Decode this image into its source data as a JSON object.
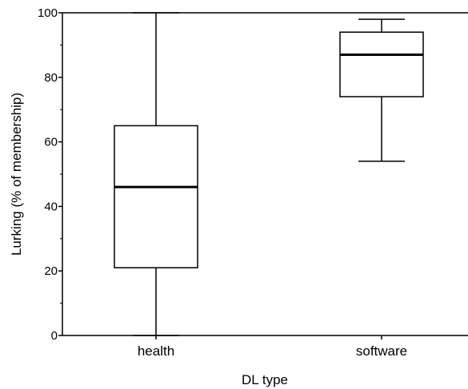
{
  "chart_data": {
    "type": "box",
    "title": "",
    "xlabel": "DL type",
    "ylabel": "Lurking (% of membership)",
    "ylim": [
      0,
      100
    ],
    "yticks": [
      0,
      20,
      40,
      60,
      80,
      100
    ],
    "categories": [
      "health",
      "software"
    ],
    "boxes": [
      {
        "category": "health",
        "min": 0,
        "q1": 21,
        "median": 46,
        "q3": 65,
        "max": 100
      },
      {
        "category": "software",
        "min": 54,
        "q1": 74,
        "median": 87,
        "q3": 94,
        "max": 98
      }
    ],
    "grid": false,
    "legend": "none"
  }
}
